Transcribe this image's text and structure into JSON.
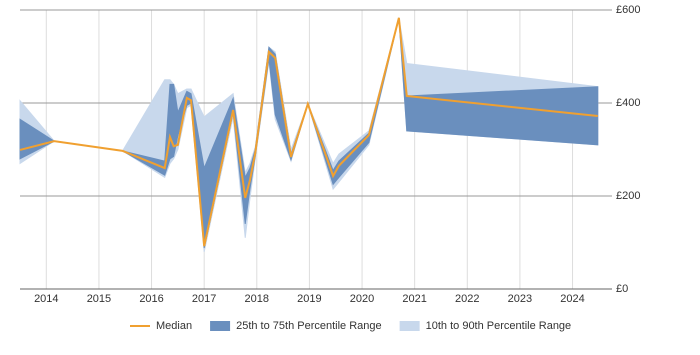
{
  "chart_data": {
    "type": "line",
    "x": [
      2013.5,
      2014.15,
      2015.45,
      2016.25,
      2016.35,
      2016.42,
      2016.5,
      2016.67,
      2016.75,
      2017.0,
      2017.55,
      2017.78,
      2017.87,
      2017.97,
      2018.23,
      2018.35,
      2018.65,
      2018.97,
      2019.45,
      2019.56,
      2020.13,
      2020.7,
      2020.85,
      2024.48
    ],
    "series": [
      {
        "name": "Median",
        "color": "#f0a030",
        "values": [
          299,
          318,
          297,
          260,
          327,
          307,
          310,
          411,
          406,
          92,
          385,
          196,
          234,
          292,
          510,
          497,
          284,
          398,
          243,
          265,
          331,
          583,
          415,
          372
        ]
      },
      {
        "name": "25th to 75th Percentile Range",
        "color": "#6a8fbe",
        "low": [
          280,
          318,
          297,
          245,
          280,
          285,
          330,
          395,
          400,
          88,
          380,
          140,
          215,
          285,
          495,
          375,
          278,
          398,
          225,
          240,
          315,
          583,
          340,
          310
        ],
        "high": [
          365,
          318,
          297,
          275,
          440,
          440,
          380,
          425,
          420,
          260,
          410,
          240,
          260,
          300,
          520,
          505,
          290,
          398,
          255,
          275,
          335,
          583,
          415,
          435
        ]
      },
      {
        "name": "10th to 90th Percentile Range",
        "color": "#c8d8ec",
        "low": [
          270,
          318,
          297,
          240,
          270,
          280,
          300,
          390,
          395,
          80,
          370,
          110,
          195,
          280,
          490,
          365,
          275,
          398,
          215,
          230,
          310,
          583,
          340,
          310
        ],
        "high": [
          405,
          318,
          297,
          450,
          450,
          440,
          420,
          430,
          430,
          370,
          420,
          250,
          270,
          305,
          520,
          510,
          300,
          398,
          270,
          290,
          340,
          583,
          485,
          435
        ]
      }
    ],
    "xlim": [
      2013.5,
      2024.75
    ],
    "xticks": [
      2014,
      2015,
      2016,
      2017,
      2018,
      2019,
      2020,
      2021,
      2022,
      2023,
      2024
    ],
    "ylim": [
      0,
      600
    ],
    "yticks": [
      {
        "value": 0,
        "label": "£0"
      },
      {
        "value": 200,
        "label": "£200"
      },
      {
        "value": 400,
        "label": "£400"
      },
      {
        "value": 600,
        "label": "£600"
      }
    ],
    "grid": true,
    "legend": "bottom"
  }
}
